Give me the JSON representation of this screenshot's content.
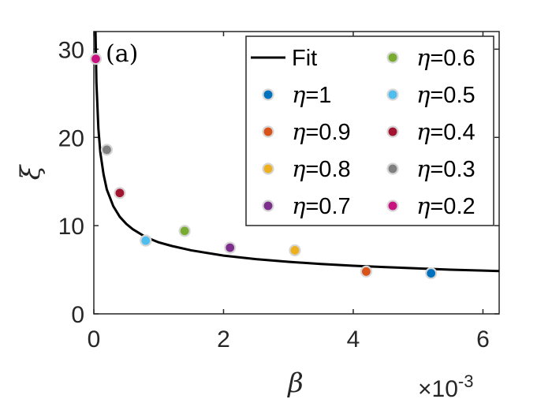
{
  "chart_data": {
    "type": "scatter",
    "panel_label": "(a)",
    "xlabel": "β",
    "ylabel": "ξ",
    "x_exponent_label": "×10",
    "x_exponent_power": "-3",
    "xlim": [
      0,
      0.00625
    ],
    "ylim": [
      0,
      32
    ],
    "xticks": [
      0,
      0.002,
      0.004,
      0.006
    ],
    "xtick_labels": [
      "0",
      "2",
      "4",
      "6"
    ],
    "yticks": [
      0,
      10,
      20,
      30
    ],
    "ytick_labels": [
      "0",
      "10",
      "20",
      "30"
    ],
    "grid": false,
    "legend_placement": "top-right",
    "fit": {
      "name": "Fit",
      "color": "#000000",
      "x": [
        2e-05,
        4e-05,
        7e-05,
        0.0001,
        0.00015,
        0.0002,
        0.0003,
        0.0004,
        0.0005,
        0.0006,
        0.0008,
        0.001,
        0.0012,
        0.0015,
        0.002,
        0.0025,
        0.003,
        0.0035,
        0.004,
        0.0045,
        0.005,
        0.0055,
        0.006,
        0.00625
      ],
      "y": [
        34.3,
        26.2,
        21.0,
        18.3,
        15.8,
        14.1,
        12.2,
        11.0,
        10.2,
        9.6,
        8.7,
        8.1,
        7.7,
        7.2,
        6.6,
        6.2,
        5.9,
        5.65,
        5.45,
        5.3,
        5.15,
        5.0,
        4.9,
        4.85
      ]
    },
    "series": [
      {
        "name": "η=1",
        "eta": "η",
        "value": "=1",
        "x": 0.0052,
        "y": 4.6,
        "color": "#0072BD"
      },
      {
        "name": "η=0.9",
        "eta": "η",
        "value": "=0.9",
        "x": 0.0042,
        "y": 4.8,
        "color": "#D95319"
      },
      {
        "name": "η=0.8",
        "eta": "η",
        "value": "=0.8",
        "x": 0.0031,
        "y": 7.2,
        "color": "#EDB120"
      },
      {
        "name": "η=0.7",
        "eta": "η",
        "value": "=0.7",
        "x": 0.0021,
        "y": 7.5,
        "color": "#7E2F8E"
      },
      {
        "name": "η=0.6",
        "eta": "η",
        "value": "=0.6",
        "x": 0.0014,
        "y": 9.4,
        "color": "#77AC30"
      },
      {
        "name": "η=0.5",
        "eta": "η",
        "value": "=0.5",
        "x": 0.0008,
        "y": 8.3,
        "color": "#4DBEEE"
      },
      {
        "name": "η=0.4",
        "eta": "η",
        "value": "=0.4",
        "x": 0.0004,
        "y": 13.7,
        "color": "#A2142F"
      },
      {
        "name": "η=0.3",
        "eta": "η",
        "value": "=0.3",
        "x": 0.0002,
        "y": 18.6,
        "color": "#808080"
      },
      {
        "name": "η=0.2",
        "eta": "η",
        "value": "=0.2",
        "x": 3e-05,
        "y": 28.9,
        "color": "#C7127F"
      }
    ]
  }
}
